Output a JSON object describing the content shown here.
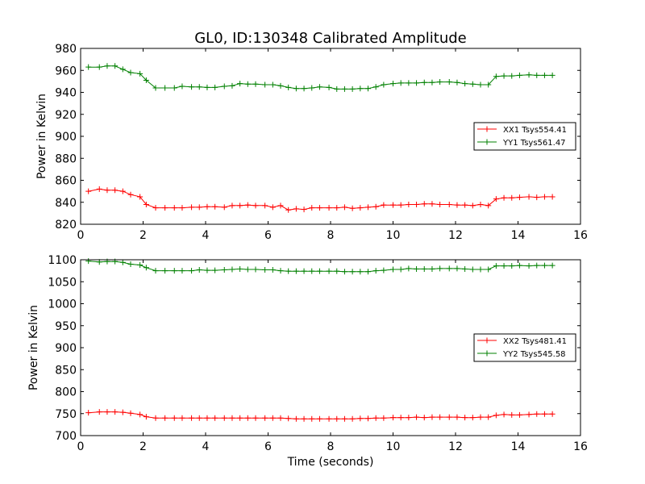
{
  "figure": {
    "title": "GL0, ID:130348 Calibrated Amplitude",
    "xlabel": "Time (seconds)"
  },
  "chart_data": [
    {
      "type": "line",
      "ylabel": "Power in Kelvin",
      "xlim": [
        0,
        16
      ],
      "ylim": [
        820,
        980
      ],
      "xticks": [
        0,
        2,
        4,
        6,
        8,
        10,
        12,
        14,
        16
      ],
      "yticks": [
        820,
        840,
        860,
        880,
        900,
        920,
        940,
        960,
        980
      ],
      "legend_position": "center-right",
      "x": [
        0.25,
        0.6,
        0.85,
        1.1,
        1.35,
        1.6,
        1.9,
        2.1,
        2.4,
        2.7,
        3.0,
        3.25,
        3.55,
        3.8,
        4.05,
        4.3,
        4.6,
        4.85,
        5.1,
        5.35,
        5.6,
        5.9,
        6.15,
        6.4,
        6.65,
        6.9,
        7.15,
        7.4,
        7.65,
        7.95,
        8.2,
        8.45,
        8.7,
        8.95,
        9.2,
        9.45,
        9.7,
        10.0,
        10.25,
        10.5,
        10.75,
        11.0,
        11.25,
        11.5,
        11.8,
        12.05,
        12.3,
        12.55,
        12.8,
        13.05,
        13.3,
        13.55,
        13.8,
        14.05,
        14.35,
        14.6,
        14.85,
        15.1
      ],
      "series": [
        {
          "name": "XX1 Tsys554.41",
          "color": "#ff0000",
          "values": [
            850,
            852,
            851,
            851,
            850,
            847,
            845,
            838,
            835,
            835,
            835,
            835,
            835.5,
            835.5,
            836,
            836,
            835.5,
            837,
            837,
            837.5,
            837,
            837,
            835.5,
            837,
            833,
            834,
            833.5,
            835,
            835,
            835,
            835,
            835.5,
            834.5,
            835,
            835.5,
            836,
            837.5,
            837.5,
            837.5,
            838,
            838,
            838.5,
            838.5,
            838,
            838,
            837.5,
            837.5,
            837,
            838,
            837,
            843,
            844,
            844,
            844.5,
            845,
            844.5,
            845,
            845
          ]
        },
        {
          "name": "YY1 Tsys561.47",
          "color": "#008000",
          "values": [
            963,
            963,
            964,
            964,
            961,
            958,
            957,
            951,
            944,
            944,
            944,
            945.5,
            945,
            945,
            944.5,
            944.5,
            945.5,
            946,
            948,
            947.5,
            947.5,
            947,
            947,
            946,
            944.5,
            943.5,
            943.5,
            944,
            945,
            944.5,
            943,
            943,
            943,
            943.5,
            943.5,
            945,
            947,
            948,
            948.5,
            948.5,
            948.5,
            949,
            949,
            949.5,
            949.5,
            949,
            948,
            947.5,
            947,
            947,
            954.5,
            955,
            955,
            955.5,
            956,
            955.5,
            955.5,
            955.5
          ]
        }
      ]
    },
    {
      "type": "line",
      "ylabel": "Power in Kelvin",
      "xlim": [
        0,
        16
      ],
      "ylim": [
        700,
        1100
      ],
      "xticks": [
        0,
        2,
        4,
        6,
        8,
        10,
        12,
        14,
        16
      ],
      "yticks": [
        700,
        750,
        800,
        850,
        900,
        950,
        1000,
        1050,
        1100
      ],
      "legend_position": "center-right",
      "x": [
        0.25,
        0.6,
        0.85,
        1.1,
        1.35,
        1.6,
        1.9,
        2.1,
        2.4,
        2.7,
        3.0,
        3.25,
        3.55,
        3.8,
        4.05,
        4.3,
        4.6,
        4.85,
        5.1,
        5.35,
        5.6,
        5.9,
        6.15,
        6.4,
        6.65,
        6.9,
        7.15,
        7.4,
        7.65,
        7.95,
        8.2,
        8.45,
        8.7,
        8.95,
        9.2,
        9.45,
        9.7,
        10.0,
        10.25,
        10.5,
        10.75,
        11.0,
        11.25,
        11.5,
        11.8,
        12.05,
        12.3,
        12.55,
        12.8,
        13.05,
        13.3,
        13.55,
        13.8,
        14.05,
        14.35,
        14.6,
        14.85,
        15.1
      ],
      "series": [
        {
          "name": "XX2 Tsys481.41",
          "color": "#ff0000",
          "values": [
            752,
            754,
            754,
            754,
            753,
            751,
            748,
            743,
            740,
            740,
            740,
            740,
            740,
            740,
            740,
            740,
            740,
            740,
            740,
            740,
            740,
            740,
            740,
            740,
            739,
            738,
            738,
            738,
            738,
            738,
            738,
            738,
            738,
            739,
            739,
            740,
            740,
            741,
            741,
            741,
            742,
            741,
            742,
            742,
            742,
            742,
            741,
            741,
            742,
            742,
            746,
            748,
            747,
            747,
            748,
            749,
            749,
            749
          ]
        },
        {
          "name": "YY2 Tsys545.58",
          "color": "#008000",
          "values": [
            1097,
            1095,
            1096,
            1096,
            1094,
            1090,
            1088,
            1082,
            1075,
            1075,
            1075,
            1075,
            1075,
            1077,
            1076,
            1076,
            1077,
            1078,
            1079,
            1078,
            1078,
            1077,
            1077,
            1075,
            1074,
            1074,
            1074,
            1074,
            1074,
            1074,
            1074,
            1073,
            1073,
            1073,
            1073,
            1075,
            1076,
            1078,
            1078,
            1080,
            1079,
            1079,
            1079,
            1080,
            1080,
            1080,
            1079,
            1078,
            1078,
            1078,
            1086,
            1086,
            1086,
            1087,
            1086,
            1087,
            1087,
            1087
          ]
        }
      ]
    }
  ]
}
